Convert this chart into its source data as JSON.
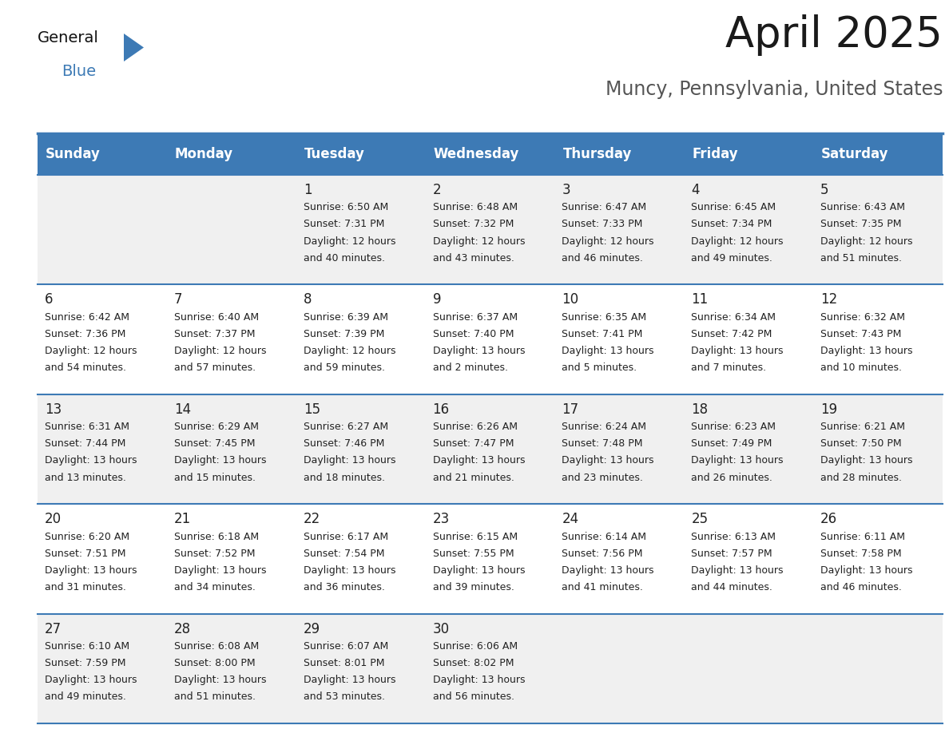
{
  "title": "April 2025",
  "subtitle": "Muncy, Pennsylvania, United States",
  "header_bg_color": "#3d7ab5",
  "header_text_color": "#ffffff",
  "cell_bg_even": "#f0f0f0",
  "cell_bg_odd": "#ffffff",
  "day_headers": [
    "Sunday",
    "Monday",
    "Tuesday",
    "Wednesday",
    "Thursday",
    "Friday",
    "Saturday"
  ],
  "days": [
    {
      "day": 1,
      "col": 2,
      "row": 0,
      "sunrise": "6:50 AM",
      "sunset": "7:31 PM",
      "daylight": "12 hours and 40 minutes"
    },
    {
      "day": 2,
      "col": 3,
      "row": 0,
      "sunrise": "6:48 AM",
      "sunset": "7:32 PM",
      "daylight": "12 hours and 43 minutes"
    },
    {
      "day": 3,
      "col": 4,
      "row": 0,
      "sunrise": "6:47 AM",
      "sunset": "7:33 PM",
      "daylight": "12 hours and 46 minutes"
    },
    {
      "day": 4,
      "col": 5,
      "row": 0,
      "sunrise": "6:45 AM",
      "sunset": "7:34 PM",
      "daylight": "12 hours and 49 minutes"
    },
    {
      "day": 5,
      "col": 6,
      "row": 0,
      "sunrise": "6:43 AM",
      "sunset": "7:35 PM",
      "daylight": "12 hours and 51 minutes"
    },
    {
      "day": 6,
      "col": 0,
      "row": 1,
      "sunrise": "6:42 AM",
      "sunset": "7:36 PM",
      "daylight": "12 hours and 54 minutes"
    },
    {
      "day": 7,
      "col": 1,
      "row": 1,
      "sunrise": "6:40 AM",
      "sunset": "7:37 PM",
      "daylight": "12 hours and 57 minutes"
    },
    {
      "day": 8,
      "col": 2,
      "row": 1,
      "sunrise": "6:39 AM",
      "sunset": "7:39 PM",
      "daylight": "12 hours and 59 minutes"
    },
    {
      "day": 9,
      "col": 3,
      "row": 1,
      "sunrise": "6:37 AM",
      "sunset": "7:40 PM",
      "daylight": "13 hours and 2 minutes"
    },
    {
      "day": 10,
      "col": 4,
      "row": 1,
      "sunrise": "6:35 AM",
      "sunset": "7:41 PM",
      "daylight": "13 hours and 5 minutes"
    },
    {
      "day": 11,
      "col": 5,
      "row": 1,
      "sunrise": "6:34 AM",
      "sunset": "7:42 PM",
      "daylight": "13 hours and 7 minutes"
    },
    {
      "day": 12,
      "col": 6,
      "row": 1,
      "sunrise": "6:32 AM",
      "sunset": "7:43 PM",
      "daylight": "13 hours and 10 minutes"
    },
    {
      "day": 13,
      "col": 0,
      "row": 2,
      "sunrise": "6:31 AM",
      "sunset": "7:44 PM",
      "daylight": "13 hours and 13 minutes"
    },
    {
      "day": 14,
      "col": 1,
      "row": 2,
      "sunrise": "6:29 AM",
      "sunset": "7:45 PM",
      "daylight": "13 hours and 15 minutes"
    },
    {
      "day": 15,
      "col": 2,
      "row": 2,
      "sunrise": "6:27 AM",
      "sunset": "7:46 PM",
      "daylight": "13 hours and 18 minutes"
    },
    {
      "day": 16,
      "col": 3,
      "row": 2,
      "sunrise": "6:26 AM",
      "sunset": "7:47 PM",
      "daylight": "13 hours and 21 minutes"
    },
    {
      "day": 17,
      "col": 4,
      "row": 2,
      "sunrise": "6:24 AM",
      "sunset": "7:48 PM",
      "daylight": "13 hours and 23 minutes"
    },
    {
      "day": 18,
      "col": 5,
      "row": 2,
      "sunrise": "6:23 AM",
      "sunset": "7:49 PM",
      "daylight": "13 hours and 26 minutes"
    },
    {
      "day": 19,
      "col": 6,
      "row": 2,
      "sunrise": "6:21 AM",
      "sunset": "7:50 PM",
      "daylight": "13 hours and 28 minutes"
    },
    {
      "day": 20,
      "col": 0,
      "row": 3,
      "sunrise": "6:20 AM",
      "sunset": "7:51 PM",
      "daylight": "13 hours and 31 minutes"
    },
    {
      "day": 21,
      "col": 1,
      "row": 3,
      "sunrise": "6:18 AM",
      "sunset": "7:52 PM",
      "daylight": "13 hours and 34 minutes"
    },
    {
      "day": 22,
      "col": 2,
      "row": 3,
      "sunrise": "6:17 AM",
      "sunset": "7:54 PM",
      "daylight": "13 hours and 36 minutes"
    },
    {
      "day": 23,
      "col": 3,
      "row": 3,
      "sunrise": "6:15 AM",
      "sunset": "7:55 PM",
      "daylight": "13 hours and 39 minutes"
    },
    {
      "day": 24,
      "col": 4,
      "row": 3,
      "sunrise": "6:14 AM",
      "sunset": "7:56 PM",
      "daylight": "13 hours and 41 minutes"
    },
    {
      "day": 25,
      "col": 5,
      "row": 3,
      "sunrise": "6:13 AM",
      "sunset": "7:57 PM",
      "daylight": "13 hours and 44 minutes"
    },
    {
      "day": 26,
      "col": 6,
      "row": 3,
      "sunrise": "6:11 AM",
      "sunset": "7:58 PM",
      "daylight": "13 hours and 46 minutes"
    },
    {
      "day": 27,
      "col": 0,
      "row": 4,
      "sunrise": "6:10 AM",
      "sunset": "7:59 PM",
      "daylight": "13 hours and 49 minutes"
    },
    {
      "day": 28,
      "col": 1,
      "row": 4,
      "sunrise": "6:08 AM",
      "sunset": "8:00 PM",
      "daylight": "13 hours and 51 minutes"
    },
    {
      "day": 29,
      "col": 2,
      "row": 4,
      "sunrise": "6:07 AM",
      "sunset": "8:01 PM",
      "daylight": "13 hours and 53 minutes"
    },
    {
      "day": 30,
      "col": 3,
      "row": 4,
      "sunrise": "6:06 AM",
      "sunset": "8:02 PM",
      "daylight": "13 hours and 56 minutes"
    }
  ],
  "num_rows": 5,
  "num_cols": 7,
  "logo_triangle_color": "#3d7ab5",
  "title_fontsize": 38,
  "subtitle_fontsize": 17,
  "header_fontsize": 12,
  "day_num_fontsize": 12,
  "cell_text_fontsize": 9,
  "line_color": "#3d7ab5",
  "fig_width": 11.88,
  "fig_height": 9.18,
  "dpi": 100
}
